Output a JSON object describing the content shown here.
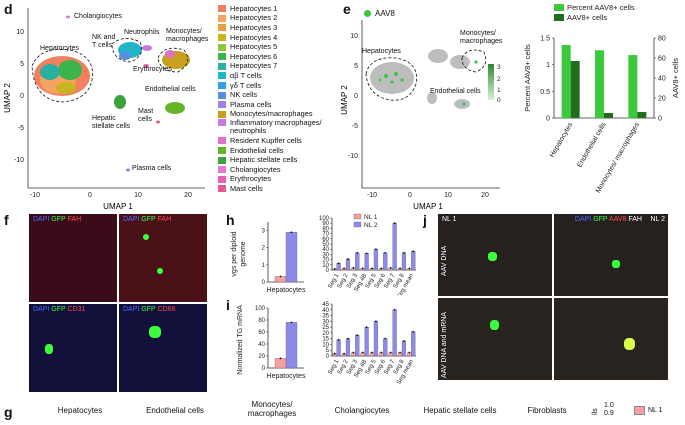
{
  "panels": {
    "d": {
      "letter": "d",
      "xlabel": "UMAP 1",
      "ylabel": "UMAP 2",
      "xticks": [
        "-10",
        "0",
        "10",
        "20"
      ],
      "yticks": [
        "10",
        "5",
        "0",
        "-5",
        "-10"
      ],
      "cluster_labels": {
        "cholangiocytes": "Cholangiocytes",
        "hepatocytes": "Hepatocytes",
        "nk_t": "NK and\nT cells",
        "neutrophils": "Neutrophils",
        "mono": "Monocytes/\nmacrophages",
        "erythrocytes": "Erythrocytes",
        "endothelial": "Endothelial cells",
        "hsc": "Hepatic\nstellate cells",
        "mast": "Mast\ncells",
        "plasma": "Plasma cells"
      },
      "legend": [
        {
          "label": "Hepatocytes 1",
          "color": "#f08060"
        },
        {
          "label": "Hepatocytes 2",
          "color": "#f4a460"
        },
        {
          "label": "Hepatocytes 3",
          "color": "#e8a040"
        },
        {
          "label": "Hepatocytes 4",
          "color": "#c8b420"
        },
        {
          "label": "Hepatocytes 5",
          "color": "#8cc83c"
        },
        {
          "label": "Hepatocytes 6",
          "color": "#3cb44b"
        },
        {
          "label": "Hepatocytes 7",
          "color": "#2ab0a0"
        },
        {
          "label": "αβ T cells",
          "color": "#20b4c8"
        },
        {
          "label": "γδ T cells",
          "color": "#30a0e0"
        },
        {
          "label": "NK cells",
          "color": "#5a8ce0"
        },
        {
          "label": "Plasma cells",
          "color": "#a080e0"
        },
        {
          "label": "Monocytes/macrophages",
          "color": "#c8a020"
        },
        {
          "label": "Inflammatory macrophages/\nneutrophils",
          "color": "#c878e0"
        },
        {
          "label": "Resident Kupffer cells",
          "color": "#e070c8"
        },
        {
          "label": "Endothelial cells",
          "color": "#64b428"
        },
        {
          "label": "Hepatic stellate cells",
          "color": "#3ca03c"
        },
        {
          "label": "Cholangiocytes",
          "color": "#e878d8"
        },
        {
          "label": "Erythrocytes",
          "color": "#e860b4"
        },
        {
          "label": "Mast cells",
          "color": "#e85890"
        }
      ]
    },
    "e": {
      "letter": "e",
      "legend_label": "AAV8",
      "xlabel": "UMAP 1",
      "ylabel": "UMAP 2",
      "xticks": [
        "-10",
        "0",
        "10",
        "20"
      ],
      "yticks": [
        "10",
        "5",
        "0",
        "-5",
        "-10"
      ],
      "colorbar_ticks": [
        "3",
        "2",
        "1",
        "0"
      ],
      "cluster_labels": {
        "hepatocytes": "Hepatocytes",
        "mono": "Monocytes/\nmacrophages",
        "endothelial": "Endothelial cells"
      }
    },
    "f": {
      "letter": "f",
      "tiles": [
        [
          "DAPI",
          "GFP",
          "FAH"
        ],
        [
          "DAPI",
          "GFP",
          "FAH"
        ],
        [
          "DAPI",
          "GFP",
          "CD31"
        ],
        [
          "DAPI",
          "GFP",
          "CD68"
        ]
      ]
    },
    "h": {
      "letter": "h",
      "ylabel": "vgs per diploid\ngenome",
      "xlabel": "Hepatocytes"
    },
    "i": {
      "letter": "i",
      "ylabel": "Normalized TG mRNA",
      "xlabel": "Hepatocytes"
    },
    "j": {
      "letter": "j",
      "nl1": "NL 1",
      "nl2": "NL 2",
      "header": [
        "DAPI",
        "GFP",
        "AAV8",
        "FAH"
      ],
      "row1": "AAV DNA",
      "row2": "AAV DNA and mRNA"
    },
    "g": {
      "letter": "g",
      "cell_types": [
        "Hepatocytes",
        "Endothelial cells",
        "Monocytes/\nmacrophages",
        "Cholangiocytes",
        "Hepatic stellate cells",
        "Fibroblasts"
      ],
      "cut_label": "lls",
      "cut_ticks": [
        "1.0",
        "0.9"
      ],
      "legend": "NL 1"
    }
  },
  "chart_data": [
    {
      "type": "bar",
      "panel": "e-bar",
      "categories": [
        "Hepatocytes",
        "Endothelial\ncells",
        "Monocytes/\nmacrophages"
      ],
      "series": [
        {
          "name": "Percent AAV8+ cells",
          "values": [
            1.37,
            1.27,
            1.18
          ],
          "color": "#3cc83c",
          "axis": "left"
        },
        {
          "name": "AAV8+ cells",
          "values": [
            57,
            5,
            6
          ],
          "color": "#1e6e1e",
          "axis": "right"
        }
      ],
      "ylabel": "Percent AAV8+ cells",
      "ylabel_right": "AAV8+ cells",
      "ylim": [
        0,
        1.5
      ],
      "ylim_right": [
        0,
        80
      ],
      "yticks": [
        0,
        0.5,
        1.0,
        1.5
      ],
      "yticks_right": [
        0,
        20,
        40,
        60,
        80
      ]
    },
    {
      "type": "bar",
      "panel": "h-left",
      "categories": [
        "Hepatocytes"
      ],
      "series": [
        {
          "name": "NL 1",
          "values": [
            0.32
          ],
          "color": "#f4a0a0"
        },
        {
          "name": "NL 2",
          "values": [
            2.9
          ],
          "color": "#8c8ce8"
        }
      ],
      "ylim": [
        0,
        3.5
      ],
      "yticks": [
        0,
        1,
        2,
        3
      ]
    },
    {
      "type": "bar",
      "panel": "h-right",
      "categories": [
        "Seg 1",
        "Seg 2",
        "Seg 3",
        "Seg 4B",
        "Seg 5",
        "Seg 6",
        "Seg 7",
        "Seg 8",
        "Seg mean"
      ],
      "series": [
        {
          "name": "NL 1",
          "values": [
            2,
            3,
            4,
            3,
            3,
            3,
            4,
            3,
            3
          ],
          "color": "#f4a0a0"
        },
        {
          "name": "NL 2",
          "values": [
            13,
            21,
            33,
            32,
            40,
            33,
            90,
            33,
            36
          ],
          "color": "#8c8ce8"
        }
      ],
      "ylim": [
        0,
        100
      ],
      "yticks": [
        0,
        10,
        20,
        30,
        40,
        50,
        60,
        70,
        80,
        90,
        100
      ],
      "legend": [
        "NL 1",
        "NL 2"
      ]
    },
    {
      "type": "bar",
      "panel": "i-left",
      "categories": [
        "Hepatocytes"
      ],
      "series": [
        {
          "name": "NL 1",
          "values": [
            16
          ],
          "color": "#f4a0a0"
        },
        {
          "name": "NL 2",
          "values": [
            76
          ],
          "color": "#8c8ce8"
        }
      ],
      "ylim": [
        0,
        100
      ],
      "yticks": [
        0,
        20,
        40,
        60,
        80,
        100
      ]
    },
    {
      "type": "bar",
      "panel": "i-right",
      "categories": [
        "Seg 1",
        "Seg 2",
        "Seg 3",
        "Seg 4B",
        "Seg 5",
        "Seg 6",
        "Seg 7",
        "Seg 8",
        "Seg mean"
      ],
      "series": [
        {
          "name": "NL 1",
          "values": [
            2,
            2,
            3,
            3,
            3,
            3,
            3,
            3,
            3
          ],
          "color": "#f4a0a0"
        },
        {
          "name": "NL 2",
          "values": [
            14,
            15,
            18,
            25,
            30,
            15,
            40,
            13,
            21
          ],
          "color": "#8c8ce8"
        }
      ],
      "ylim": [
        0,
        45
      ],
      "yticks": [
        0,
        5,
        10,
        15,
        20,
        25,
        30,
        35,
        40,
        45
      ]
    }
  ]
}
